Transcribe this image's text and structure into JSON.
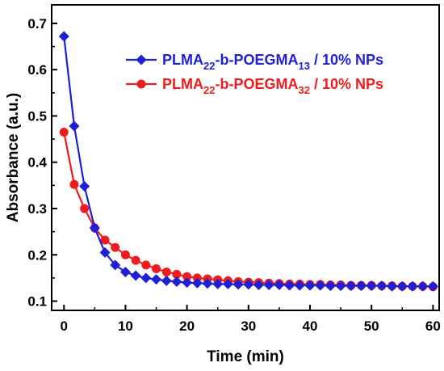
{
  "chart_data": {
    "type": "line",
    "xlabel": "Time (min)",
    "ylabel": "Absorbance (a.u.)",
    "xlim": [
      -2,
      61
    ],
    "ylim": [
      0.08,
      0.74
    ],
    "x_ticks": [
      0,
      10,
      20,
      30,
      40,
      50,
      60
    ],
    "y_ticks": [
      0.1,
      0.2,
      0.3,
      0.4,
      0.5,
      0.6,
      0.7
    ],
    "x_tick_labels": [
      "0",
      "10",
      "20",
      "30",
      "40",
      "50",
      "60"
    ],
    "y_tick_labels": [
      "0.1",
      "0.2",
      "0.3",
      "0.4",
      "0.5",
      "0.6",
      "0.7"
    ],
    "legend_position": "top-right",
    "grid": false,
    "x": [
      0,
      1.67,
      3.33,
      5,
      6.67,
      8.33,
      10,
      11.67,
      13.33,
      15,
      16.67,
      18.33,
      20,
      21.67,
      23.33,
      25,
      26.67,
      28.33,
      30,
      31.67,
      33.33,
      35,
      36.67,
      38.33,
      40,
      41.67,
      43.33,
      45,
      46.67,
      48.33,
      50,
      51.67,
      53.33,
      55,
      56.67,
      58.33,
      60
    ],
    "series": [
      {
        "name_parts": [
          "PLMA",
          "22",
          "-b-POEGMA",
          "13",
          " / 10% NPs"
        ],
        "color": "#1f1fd6",
        "marker": "diamond",
        "values": [
          0.672,
          0.478,
          0.348,
          0.258,
          0.205,
          0.178,
          0.163,
          0.155,
          0.15,
          0.147,
          0.144,
          0.142,
          0.14,
          0.139,
          0.138,
          0.137,
          0.137,
          0.136,
          0.136,
          0.135,
          0.135,
          0.135,
          0.134,
          0.134,
          0.134,
          0.134,
          0.133,
          0.133,
          0.133,
          0.133,
          0.133,
          0.133,
          0.132,
          0.132,
          0.132,
          0.132,
          0.132
        ]
      },
      {
        "name_parts": [
          "PLMA",
          "22",
          "-b-POEGMA",
          "32",
          " / 10% NPs"
        ],
        "color": "#ee1c1c",
        "marker": "circle",
        "values": [
          0.465,
          0.352,
          0.3,
          0.258,
          0.232,
          0.216,
          0.2,
          0.188,
          0.178,
          0.17,
          0.163,
          0.158,
          0.153,
          0.15,
          0.148,
          0.146,
          0.144,
          0.142,
          0.141,
          0.14,
          0.139,
          0.138,
          0.137,
          0.137,
          0.136,
          0.136,
          0.135,
          0.135,
          0.134,
          0.134,
          0.134,
          0.133,
          0.133,
          0.132,
          0.132,
          0.132,
          0.131
        ]
      }
    ]
  }
}
